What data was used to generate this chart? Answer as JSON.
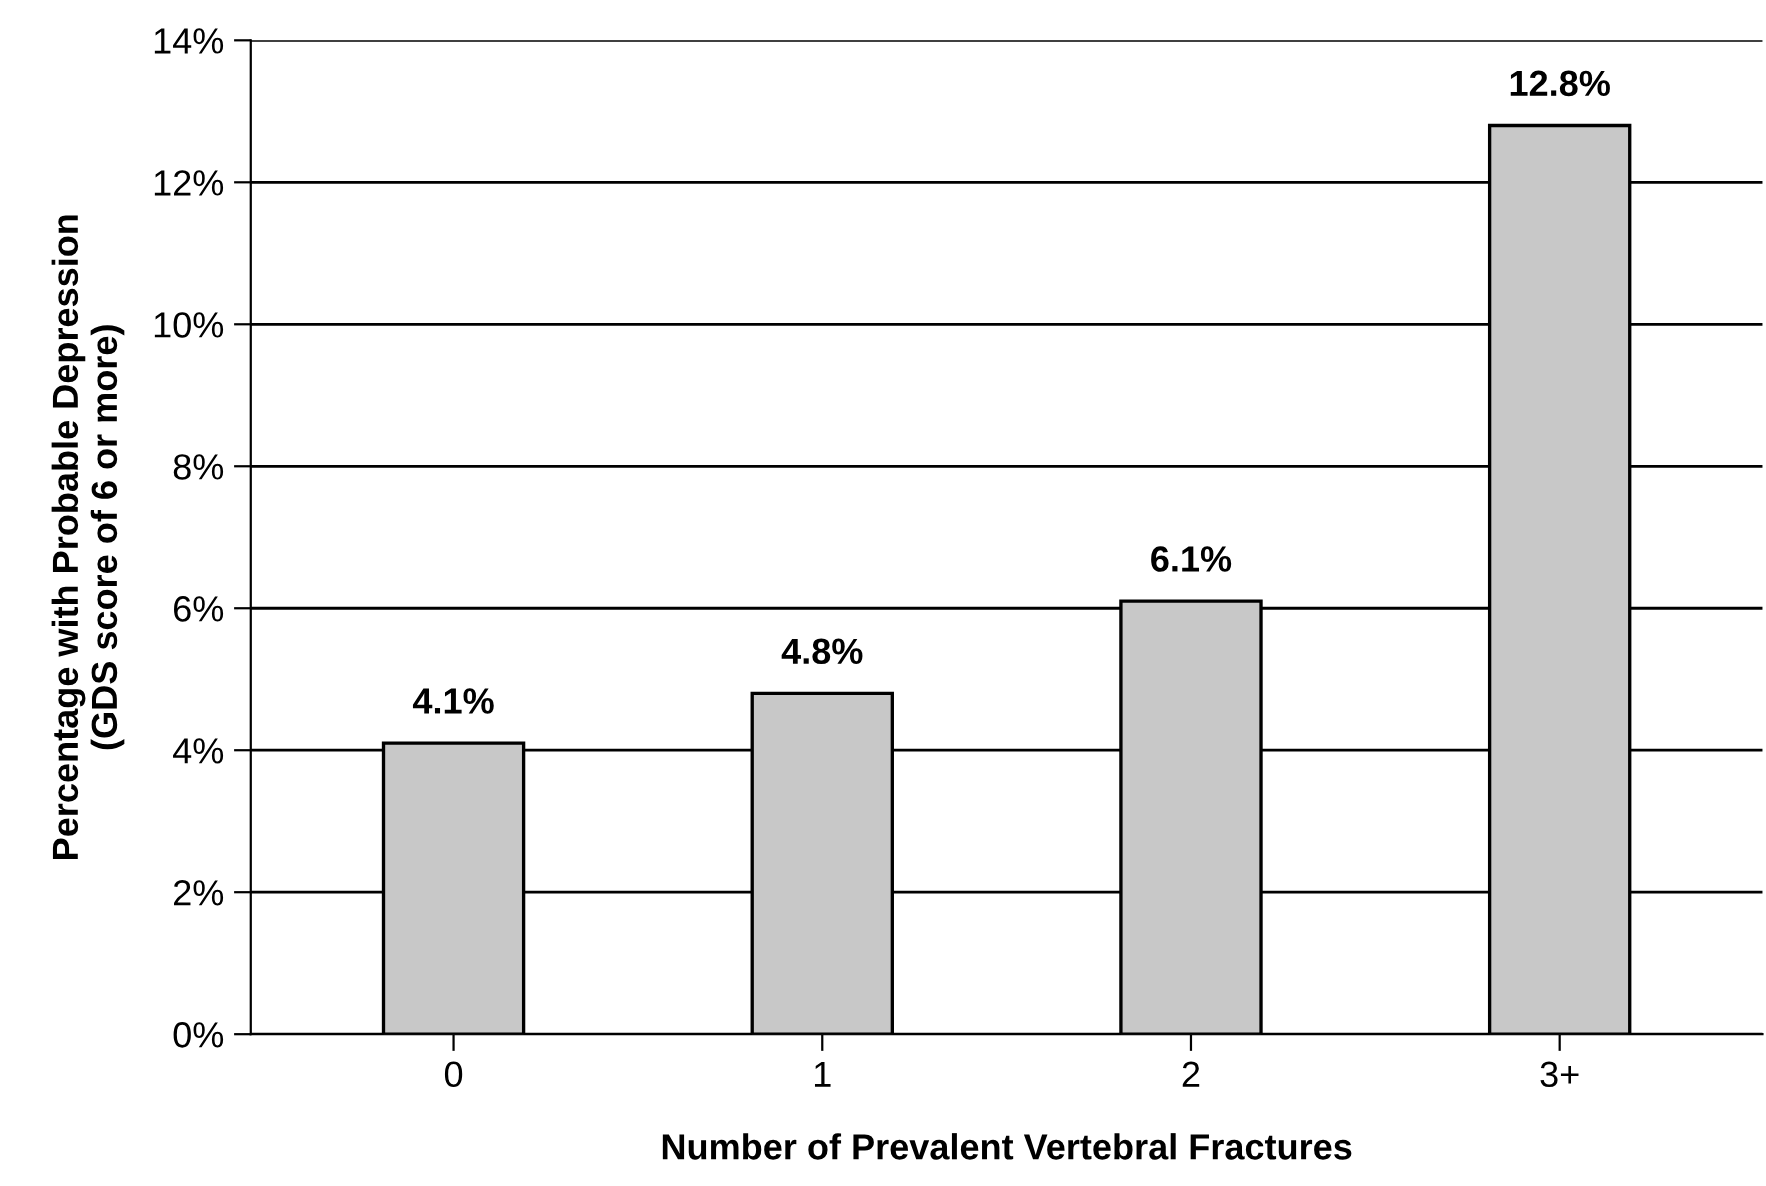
{
  "chart_data": {
    "type": "bar",
    "xlabel": "Number of Prevalent Vertebral Fractures",
    "ylabel": "Percentage with Probable Depression\n(GDS score of 6 or more)",
    "categories": [
      "0",
      "1",
      "2",
      "3+"
    ],
    "values": [
      4.1,
      4.8,
      6.1,
      12.8
    ],
    "value_labels": [
      "4.1%",
      "4.8%",
      "6.1%",
      "12.8%"
    ],
    "color": "#c8c8c8",
    "ylim": [
      0,
      14
    ],
    "yticks": [
      {
        "value": 0,
        "label": "0%"
      },
      {
        "value": 2,
        "label": "2%"
      },
      {
        "value": 4,
        "label": "4%"
      },
      {
        "value": 6,
        "label": "6%"
      },
      {
        "value": 8,
        "label": "8%"
      },
      {
        "value": 10,
        "label": "10%"
      },
      {
        "value": 12,
        "label": "12%"
      },
      {
        "value": 14,
        "label": "14%"
      }
    ],
    "grid": "y",
    "legend": false
  }
}
